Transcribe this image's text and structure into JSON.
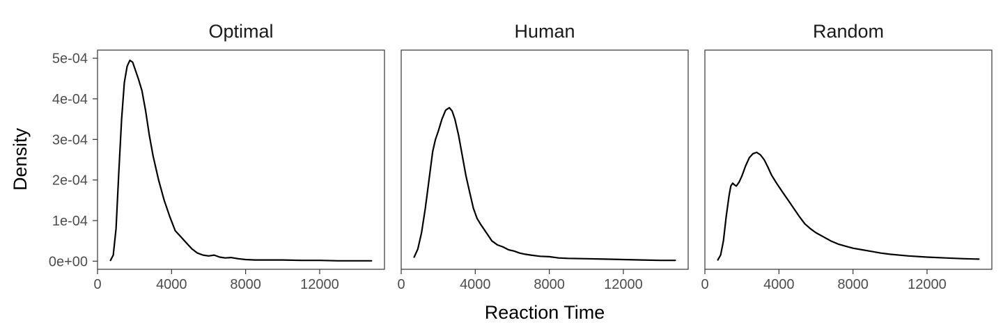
{
  "chart_data": {
    "type": "line",
    "facet_layout": "1 row x 3 columns, shared y axis",
    "xlabel": "Reaction Time",
    "ylabel": "Density",
    "xlim": [
      0,
      15500
    ],
    "ylim": [
      -2e-05,
      0.00052
    ],
    "x_ticks": [
      0,
      4000,
      8000,
      12000
    ],
    "x_tick_labels": [
      "0",
      "4000",
      "8000",
      "12000"
    ],
    "y_ticks": [
      0,
      0.0001,
      0.0002,
      0.0003,
      0.0004,
      0.0005
    ],
    "y_tick_labels": [
      "0e+00",
      "1e-04",
      "2e-04",
      "3e-04",
      "4e-04",
      "5e-04"
    ],
    "grid": false,
    "panels": [
      {
        "title": "Optimal",
        "x": [
          700,
          850,
          1000,
          1150,
          1300,
          1450,
          1600,
          1750,
          1900,
          2050,
          2200,
          2400,
          2600,
          2800,
          3000,
          3300,
          3600,
          3900,
          4200,
          4500,
          4800,
          5100,
          5400,
          5700,
          6000,
          6300,
          6600,
          6900,
          7200,
          7600,
          8000,
          8500,
          9000,
          10000,
          11000,
          12000,
          13000,
          14000,
          14800
        ],
        "y": [
          2e-06,
          1.5e-05,
          8e-05,
          0.00022,
          0.00035,
          0.00044,
          0.00048,
          0.000495,
          0.00049,
          0.00047,
          0.00045,
          0.00042,
          0.00037,
          0.00031,
          0.00026,
          0.0002,
          0.00015,
          0.00011,
          7.5e-05,
          6e-05,
          4.5e-05,
          3e-05,
          2e-05,
          1.5e-05,
          1.3e-05,
          1.5e-05,
          1e-05,
          8e-06,
          9e-06,
          6e-06,
          4e-06,
          3e-06,
          3e-06,
          3e-06,
          2e-06,
          2e-06,
          1e-06,
          1e-06,
          1e-06
        ]
      },
      {
        "title": "Human",
        "x": [
          700,
          900,
          1100,
          1300,
          1500,
          1700,
          1850,
          2000,
          2200,
          2400,
          2600,
          2750,
          2900,
          3100,
          3300,
          3500,
          3700,
          3900,
          4100,
          4300,
          4600,
          4900,
          5200,
          5500,
          5800,
          6100,
          6400,
          6700,
          7000,
          7500,
          8000,
          8500,
          9000,
          10000,
          11000,
          12000,
          13000,
          14000,
          14800
        ],
        "y": [
          1e-05,
          3e-05,
          7e-05,
          0.00013,
          0.0002,
          0.00027,
          0.0003,
          0.00032,
          0.00035,
          0.000372,
          0.000378,
          0.00037,
          0.00035,
          0.00031,
          0.00026,
          0.00021,
          0.00017,
          0.00013,
          0.000105,
          9e-05,
          7e-05,
          5e-05,
          4e-05,
          3.5e-05,
          2.8e-05,
          2.5e-05,
          2e-05,
          1.7e-05,
          1.5e-05,
          1.2e-05,
          1.1e-05,
          8e-06,
          7e-06,
          6e-06,
          5e-06,
          4e-06,
          3e-06,
          2e-06,
          2e-06
        ]
      },
      {
        "title": "Random",
        "x": [
          700,
          850,
          1000,
          1150,
          1300,
          1400,
          1500,
          1600,
          1700,
          1850,
          2000,
          2200,
          2400,
          2600,
          2800,
          3000,
          3200,
          3400,
          3600,
          3900,
          4200,
          4500,
          4800,
          5100,
          5400,
          5700,
          6000,
          6400,
          6800,
          7200,
          7600,
          8000,
          8500,
          9000,
          9500,
          10000,
          11000,
          12000,
          13000,
          14000,
          14800
        ],
        "y": [
          3e-06,
          1.5e-05,
          5e-05,
          0.00011,
          0.00016,
          0.000185,
          0.000192,
          0.000188,
          0.000185,
          0.000195,
          0.00021,
          0.000235,
          0.000255,
          0.000265,
          0.000268,
          0.000262,
          0.00025,
          0.000232,
          0.000212,
          0.00019,
          0.00017,
          0.00015,
          0.00013,
          0.00011,
          9.2e-05,
          8e-05,
          7e-05,
          6e-05,
          5e-05,
          4.2e-05,
          3.7e-05,
          3.2e-05,
          2.8e-05,
          2.4e-05,
          2e-05,
          1.7e-05,
          1.3e-05,
          1e-05,
          8e-06,
          6e-06,
          5e-06
        ]
      }
    ]
  }
}
